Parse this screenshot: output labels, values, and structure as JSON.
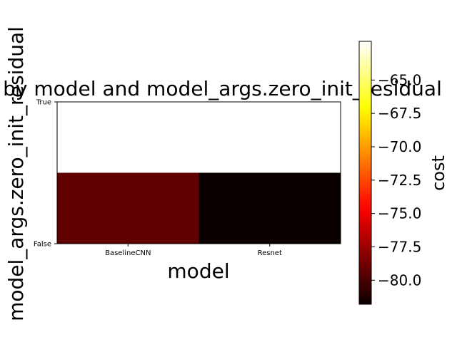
{
  "chart_data": {
    "type": "heatmap",
    "title": "cost by model and model_args.zero_init_residual",
    "xlabel": "model",
    "ylabel": "model_args.zero_init_residual",
    "x_categories": [
      "BaselineCNN",
      "Resnet"
    ],
    "y_categories": [
      "True",
      "False"
    ],
    "values": [
      [
        -62.1,
        null
      ],
      [
        -79.3,
        -81.8
      ]
    ],
    "colormap": "hot",
    "colorbar": {
      "label": "cost",
      "vmin": -81.8,
      "vmax": -62.1,
      "ticks": [
        -65.0,
        -67.5,
        -70.0,
        -72.5,
        -75.0,
        -77.5,
        -80.0
      ],
      "tick_labels": [
        "−65.0",
        "−67.5",
        "−70.0",
        "−72.5",
        "−75.0",
        "−77.5",
        "−80.0"
      ]
    },
    "missing_color": "#ffffff"
  }
}
